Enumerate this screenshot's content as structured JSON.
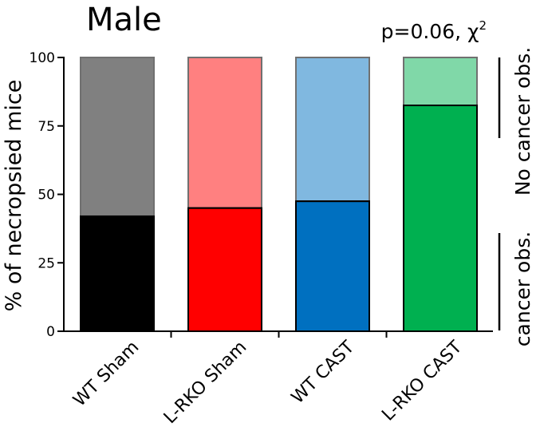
{
  "chart_data": {
    "type": "bar",
    "stacked": true,
    "title": "Male",
    "annotation": {
      "text": "p=0.06, ",
      "symbol": "χ",
      "superscript": "2"
    },
    "ylabel": "% of necropsied mice",
    "xlabel": "",
    "ylim": [
      0,
      100
    ],
    "yticks": [
      0,
      25,
      50,
      75,
      100
    ],
    "grid": false,
    "categories": [
      "WT Sham",
      "L-RKO Sham",
      "WT CAST",
      "L-RKO CAST"
    ],
    "series": [
      {
        "values": [
          42,
          45,
          47.5,
          82.5
        ],
        "colors": [
          "#000000",
          "#ff0000",
          "#0070c0",
          "#00b050"
        ]
      },
      {
        "values": [
          58,
          55,
          52.5,
          17.5
        ],
        "colors": [
          "#808080",
          "#ff8080",
          "#80b8e0",
          "#80d8a8"
        ]
      }
    ],
    "side_labels": {
      "upper": "No cancer obs.",
      "lower": "cancer obs."
    }
  }
}
